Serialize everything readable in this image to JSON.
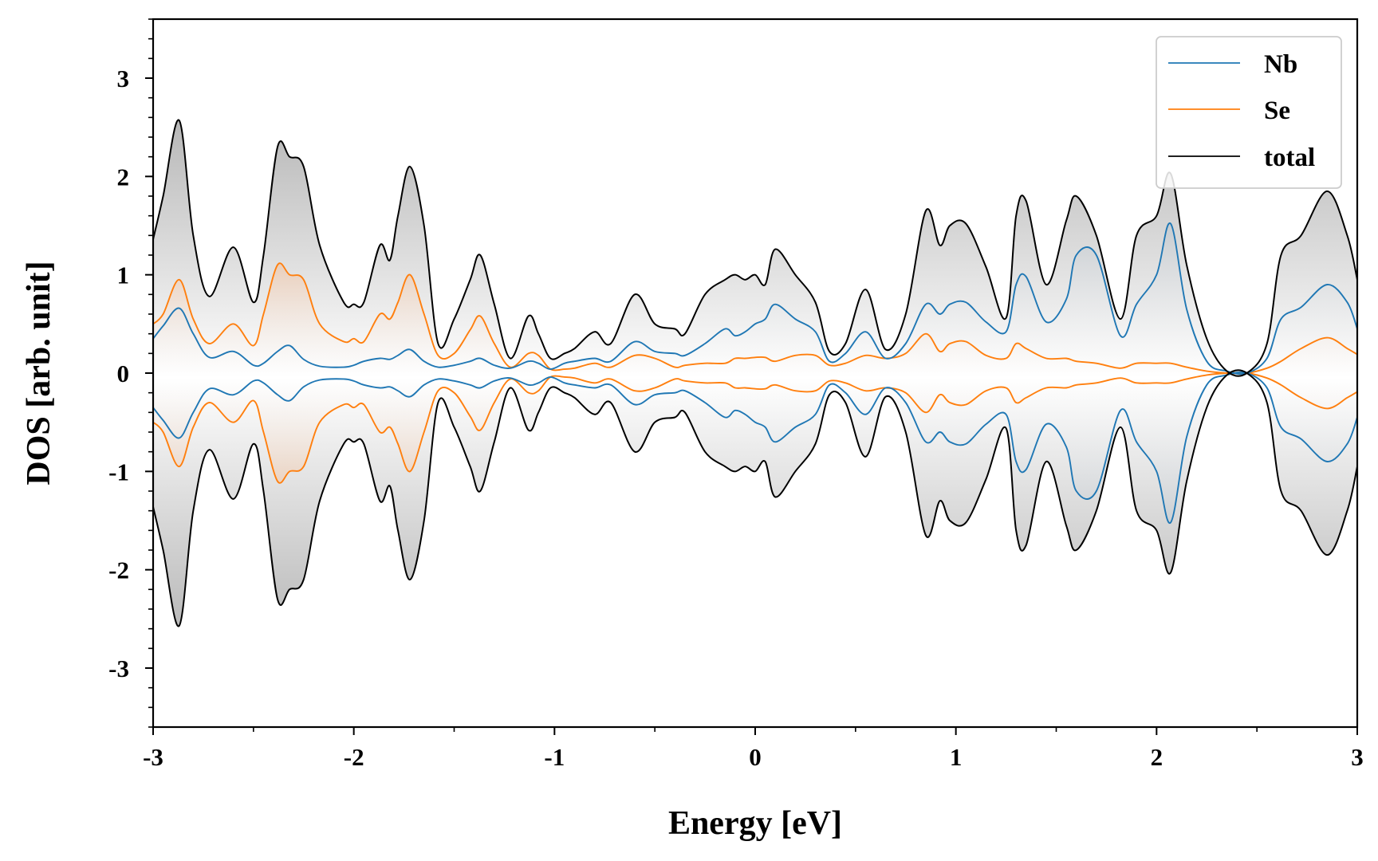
{
  "chart_data": {
    "type": "line",
    "title": "",
    "xlabel": "Energy [eV]",
    "ylabel": "DOS [arb. unit]",
    "xlim": [
      -3,
      3
    ],
    "ylim": [
      -3.6,
      3.6
    ],
    "xticks": [
      -3,
      -2,
      -1,
      0,
      1,
      2,
      3
    ],
    "xtick_labels": [
      "-3",
      "-2",
      "-1",
      "0",
      "1",
      "2",
      "3"
    ],
    "yticks": [
      -3,
      -2,
      -1,
      0,
      1,
      2,
      3
    ],
    "ytick_labels": [
      "-3",
      "-2",
      "-1",
      "0",
      "1",
      "2",
      "3"
    ],
    "legend_position": "top-right",
    "mirrored_about_zero": true,
    "x": [
      -3.0,
      -2.95,
      -2.87,
      -2.8,
      -2.72,
      -2.6,
      -2.5,
      -2.45,
      -2.38,
      -2.32,
      -2.25,
      -2.17,
      -2.05,
      -2.0,
      -1.95,
      -1.87,
      -1.82,
      -1.78,
      -1.72,
      -1.65,
      -1.58,
      -1.5,
      -1.42,
      -1.37,
      -1.3,
      -1.22,
      -1.13,
      -1.08,
      -1.02,
      -0.95,
      -0.9,
      -0.8,
      -0.72,
      -0.6,
      -0.5,
      -0.4,
      -0.35,
      -0.25,
      -0.15,
      -0.1,
      -0.05,
      0.0,
      0.05,
      0.1,
      0.2,
      0.3,
      0.37,
      0.45,
      0.55,
      0.65,
      0.75,
      0.85,
      0.92,
      0.97,
      1.05,
      1.15,
      1.25,
      1.3,
      1.35,
      1.45,
      1.55,
      1.6,
      1.7,
      1.82,
      1.9,
      2.0,
      2.07,
      2.15,
      2.25,
      2.35,
      2.45,
      2.55,
      2.62,
      2.72,
      2.85,
      2.95,
      3.0
    ],
    "series": [
      {
        "name": "Nb",
        "color": "#1f77b4",
        "values": [
          0.35,
          0.48,
          0.66,
          0.4,
          0.16,
          0.22,
          0.08,
          0.1,
          0.22,
          0.28,
          0.14,
          0.07,
          0.06,
          0.08,
          0.12,
          0.15,
          0.14,
          0.18,
          0.24,
          0.12,
          0.06,
          0.08,
          0.12,
          0.15,
          0.08,
          0.05,
          0.12,
          0.1,
          0.04,
          0.1,
          0.12,
          0.15,
          0.12,
          0.32,
          0.22,
          0.2,
          0.18,
          0.3,
          0.45,
          0.38,
          0.42,
          0.5,
          0.55,
          0.7,
          0.55,
          0.42,
          0.12,
          0.2,
          0.42,
          0.15,
          0.3,
          0.7,
          0.6,
          0.7,
          0.72,
          0.52,
          0.42,
          0.9,
          0.98,
          0.52,
          0.75,
          1.2,
          1.2,
          0.38,
          0.7,
          1.0,
          1.52,
          0.65,
          0.12,
          0.02,
          0.0,
          0.15,
          0.55,
          0.67,
          0.9,
          0.72,
          0.45
        ]
      },
      {
        "name": "Se",
        "color": "#ff7f0e",
        "values": [
          0.5,
          0.6,
          0.95,
          0.55,
          0.3,
          0.5,
          0.28,
          0.6,
          1.1,
          1.0,
          0.95,
          0.5,
          0.32,
          0.35,
          0.32,
          0.6,
          0.55,
          0.72,
          1.0,
          0.6,
          0.18,
          0.2,
          0.44,
          0.58,
          0.3,
          0.06,
          0.2,
          0.18,
          0.04,
          0.04,
          0.05,
          0.1,
          0.06,
          0.18,
          0.15,
          0.06,
          0.08,
          0.1,
          0.1,
          0.15,
          0.15,
          0.16,
          0.16,
          0.12,
          0.18,
          0.18,
          0.08,
          0.1,
          0.18,
          0.15,
          0.2,
          0.4,
          0.22,
          0.3,
          0.32,
          0.18,
          0.15,
          0.3,
          0.25,
          0.15,
          0.15,
          0.12,
          0.1,
          0.05,
          0.1,
          0.1,
          0.1,
          0.06,
          0.02,
          0.0,
          0.0,
          0.05,
          0.12,
          0.25,
          0.36,
          0.25,
          0.19
        ]
      },
      {
        "name": "total",
        "color": "#000000",
        "values": [
          1.36,
          1.8,
          2.57,
          1.4,
          0.78,
          1.28,
          0.72,
          1.2,
          2.3,
          2.2,
          2.1,
          1.3,
          0.72,
          0.7,
          0.72,
          1.3,
          1.15,
          1.6,
          2.1,
          1.5,
          0.3,
          0.55,
          0.95,
          1.2,
          0.7,
          0.15,
          0.58,
          0.4,
          0.15,
          0.2,
          0.25,
          0.42,
          0.3,
          0.8,
          0.5,
          0.45,
          0.4,
          0.8,
          0.95,
          1.0,
          0.95,
          1.0,
          0.9,
          1.26,
          1.0,
          0.72,
          0.22,
          0.3,
          0.85,
          0.24,
          0.6,
          1.65,
          1.3,
          1.5,
          1.52,
          1.08,
          0.56,
          1.6,
          1.75,
          0.9,
          1.55,
          1.8,
          1.4,
          0.55,
          1.4,
          1.6,
          2.03,
          1.1,
          0.35,
          0.02,
          0.0,
          0.3,
          1.2,
          1.4,
          1.85,
          1.4,
          0.95
        ]
      }
    ]
  }
}
